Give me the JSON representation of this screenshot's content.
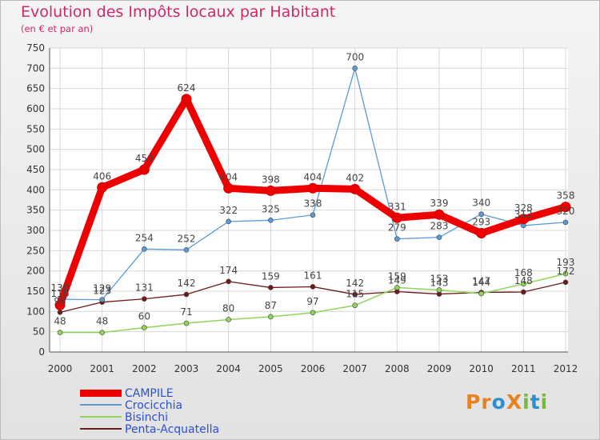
{
  "title": "Evolution des Impôts locaux par Habitant",
  "subtitle": "(en € et par an)",
  "logo": {
    "text": "ProXiti",
    "letters": [
      {
        "ch": "P",
        "color": "#e8821e"
      },
      {
        "ch": "r",
        "color": "#e8821e"
      },
      {
        "ch": "o",
        "color": "#2e8fd0"
      },
      {
        "ch": "X",
        "color": "#e8821e"
      },
      {
        "ch": "i",
        "color": "#7ab83a"
      },
      {
        "ch": "t",
        "color": "#2e8fd0"
      },
      {
        "ch": "i",
        "color": "#7ab83a"
      }
    ]
  },
  "chart_data": {
    "type": "line",
    "title": "Evolution des Impôts locaux par Habitant",
    "subtitle": "(en € et par an)",
    "x": [
      "2000",
      "2001",
      "2002",
      "2003",
      "2004",
      "2005",
      "2006",
      "2007",
      "2008",
      "2009",
      "2010",
      "2011",
      "2012"
    ],
    "ylim": [
      0,
      750
    ],
    "yticks": [
      0,
      50,
      100,
      150,
      200,
      250,
      300,
      350,
      400,
      450,
      500,
      550,
      600,
      650,
      700,
      750
    ],
    "grid": true,
    "legend_position": "bottom-left",
    "series": [
      {
        "name": "CAMPILE",
        "color": "#ee0000",
        "values": [
          116,
          406,
          450,
          624,
          404,
          398,
          404,
          402,
          331,
          339,
          293,
          328,
          358
        ]
      },
      {
        "name": "Crocicchia",
        "color": "#5b9bd5",
        "values": [
          130,
          129,
          254,
          252,
          322,
          325,
          338,
          700,
          279,
          283,
          340,
          312,
          320
        ]
      },
      {
        "name": "Bisinchi",
        "color": "#8ed65a",
        "values": [
          48,
          48,
          60,
          71,
          80,
          87,
          97,
          115,
          159,
          153,
          144,
          168,
          193
        ]
      },
      {
        "name": "Penta-Acquatella",
        "color": "#6e1a1a",
        "values": [
          98,
          123,
          131,
          142,
          174,
          159,
          161,
          142,
          149,
          143,
          147,
          148,
          172
        ]
      }
    ]
  }
}
